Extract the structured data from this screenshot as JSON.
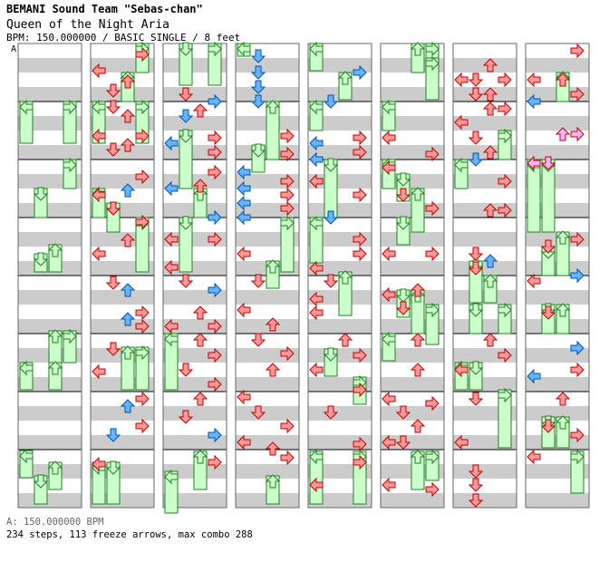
{
  "header": {
    "artist": "BEMANI Sound Team \"Sebas-chan\"",
    "title": "Queen of the Night Aria",
    "meta": "BPM: 150.000000 / BASIC SINGLE / 8 feet"
  },
  "bpm_marker": "A",
  "footer": {
    "bpm_line": "A: 150.000000 BPM",
    "stats": "234 steps, 113 freeze arrows, max combo 288"
  },
  "colors": {
    "stripe": "#cccccc",
    "column_border": "#666666",
    "step_red": "#ff9999",
    "step_red_border": "#c00000",
    "step_blue": "#66b3ff",
    "step_blue_border": "#0055aa",
    "step_pink": "#ffb3ff",
    "freeze_green": "#ccffcc",
    "freeze_green_border": "#208020"
  },
  "chart": {
    "columns": 8,
    "measures_per_column": 8,
    "lanes": [
      "left",
      "down",
      "up",
      "right"
    ]
  }
}
